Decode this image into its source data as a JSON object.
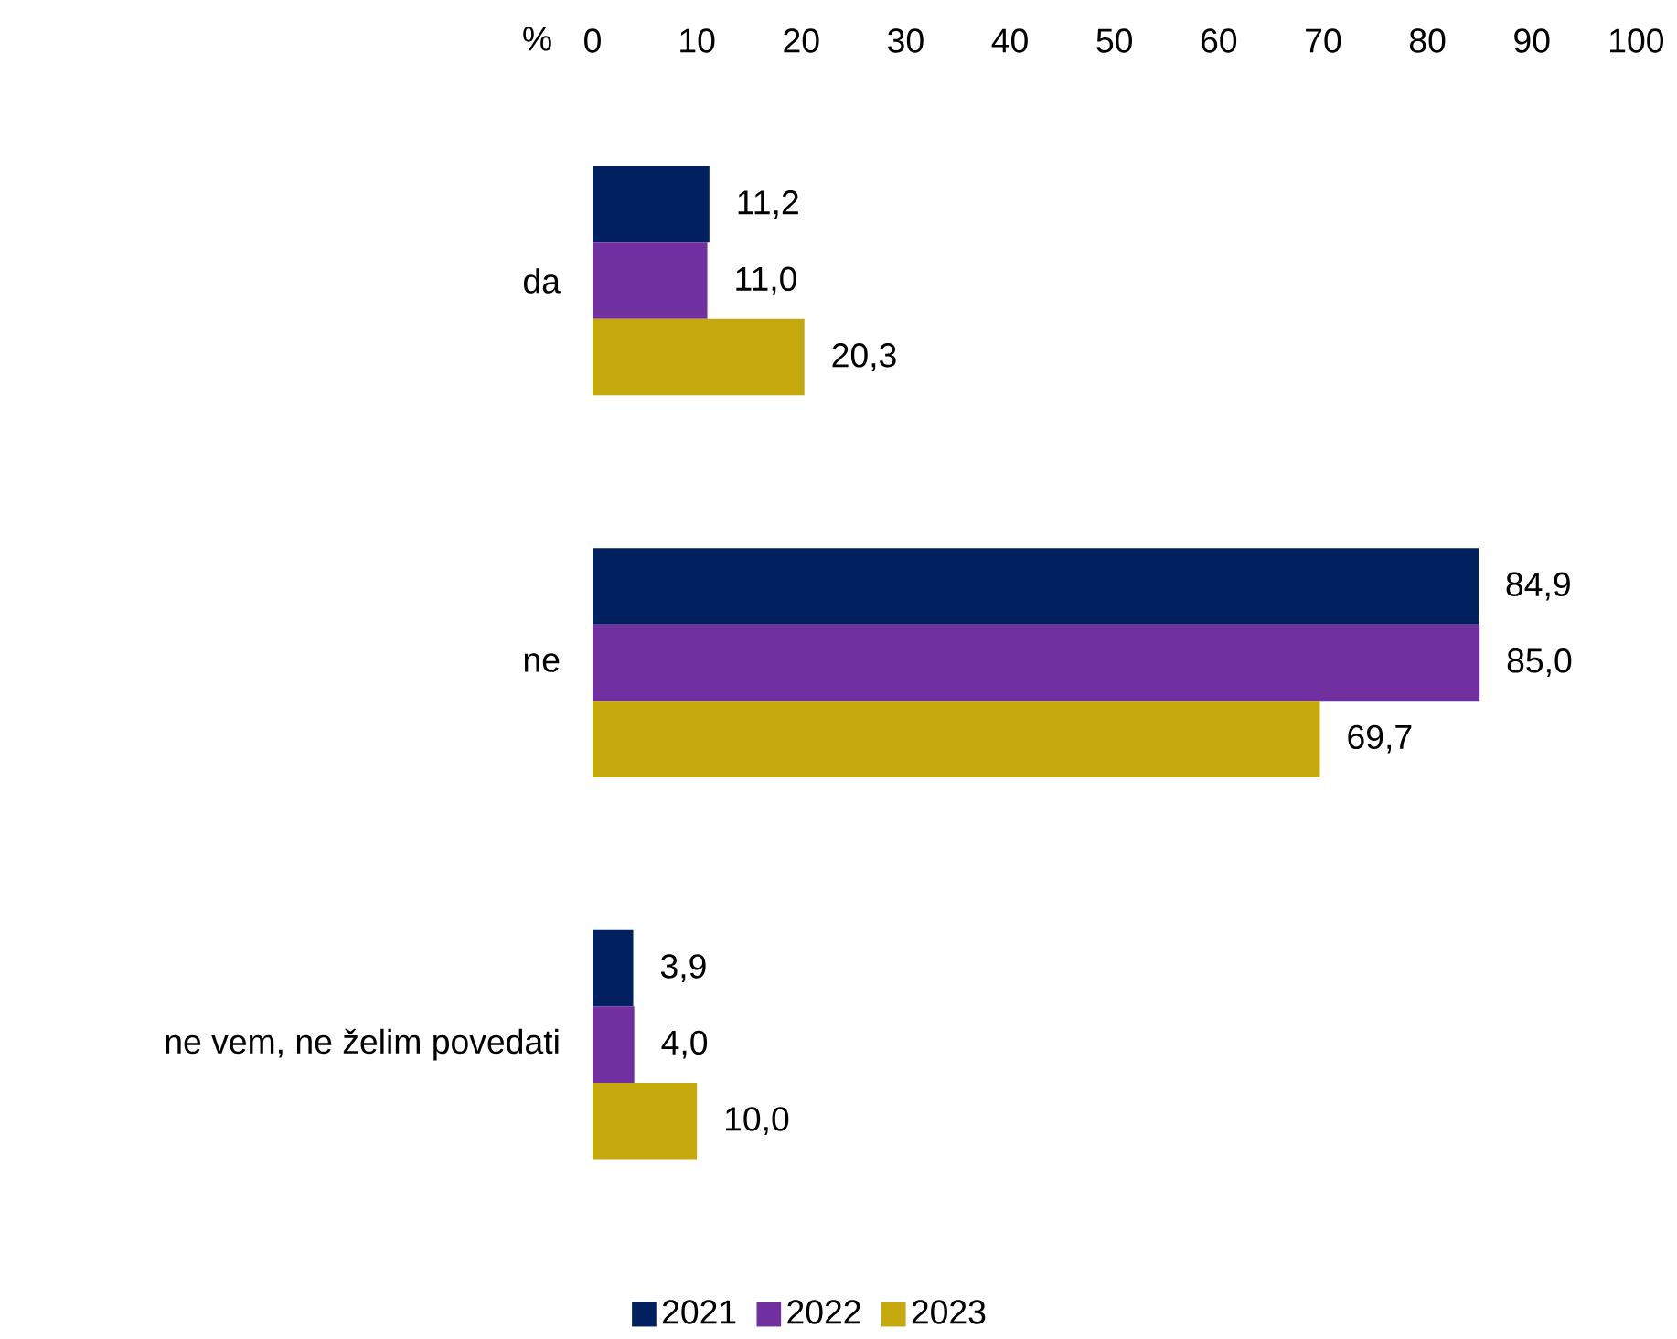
{
  "chart_data": {
    "type": "bar",
    "orientation": "horizontal",
    "xlabel": "%",
    "categories": [
      "da",
      "ne",
      "ne vem, ne želim povedati"
    ],
    "series": [
      {
        "name": "2021",
        "color": "#002060",
        "values": [
          11.2,
          84.9,
          3.9
        ],
        "value_labels": [
          "11,2",
          "84,9",
          "3,9"
        ]
      },
      {
        "name": "2022",
        "color": "#7030a0",
        "values": [
          11.0,
          85.0,
          4.0
        ],
        "value_labels": [
          "11,0",
          "85,0",
          "4,0"
        ]
      },
      {
        "name": "2023",
        "color": "#c4a80c",
        "values": [
          20.3,
          69.7,
          10.0
        ],
        "value_labels": [
          "20,3",
          "69,7",
          "10,0"
        ]
      }
    ],
    "xlim": [
      0,
      100
    ],
    "xticks": [
      0,
      10,
      20,
      30,
      40,
      50,
      60,
      70,
      80,
      90,
      100
    ],
    "grid": false,
    "legend": "bottom"
  }
}
